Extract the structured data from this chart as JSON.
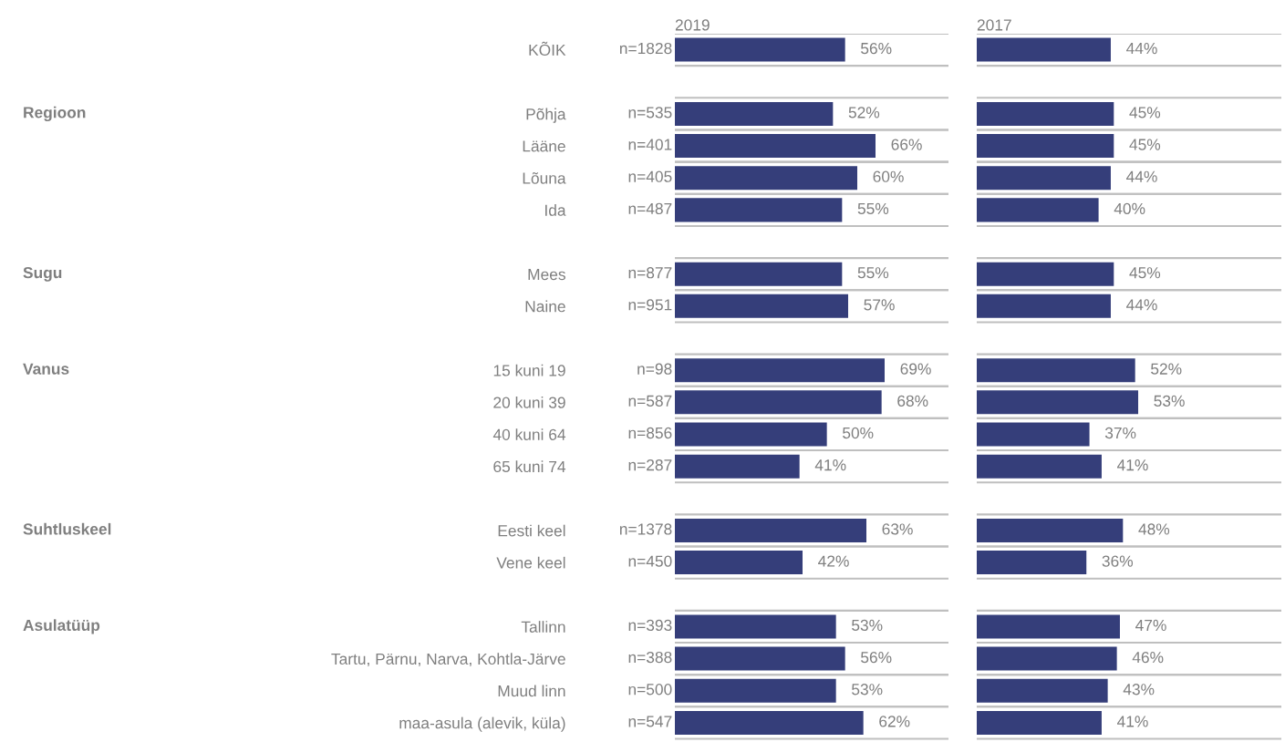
{
  "chart_data": [
    {
      "type": "other",
      "annotations": [
        {
          "text": "Regioon",
          "y": "Põhja"
        },
        {
          "text": "Sugu",
          "y": "Mees"
        },
        {
          "text": "Vanus",
          "y": "15 kuni 19"
        },
        {
          "text": "Suhtluskeel",
          "y": "Eesti keel"
        },
        {
          "text": "Asulatüüp",
          "y": "Tallinn"
        }
      ]
    },
    {
      "type": "bar",
      "orientation": "horizontal",
      "title": "2019",
      "tick_labels": "y",
      "grid": "y",
      "xlim": [
        0,
        90
      ],
      "categories": [
        "KÕIK",
        null,
        "Põhja",
        "Lääne",
        "Lõuna",
        "Ida",
        null,
        "Mees",
        "Naine",
        null,
        "15 kuni 19",
        "20 kuni 39",
        "40 kuni 64",
        "65 kuni 74",
        null,
        "Eesti keel",
        "Vene keel",
        null,
        "Tallinn",
        "Tartu, Pärnu, Narva, Kohtla-Järve",
        "Muud linn",
        "maa-asula (alevik, küla)"
      ],
      "series": [
        {
          "color": "#353e7a",
          "values": [
            56,
            null,
            52,
            66,
            60,
            55,
            null,
            55,
            57,
            null,
            69,
            68,
            50,
            41,
            null,
            63,
            42,
            null,
            53,
            56,
            53,
            62
          ],
          "value_labels": [
            "56%",
            null,
            "52%",
            "66%",
            "60%",
            "55%",
            null,
            "55%",
            "57%",
            null,
            "69%",
            "68%",
            "50%",
            "41%",
            null,
            "63%",
            "42%",
            null,
            "53%",
            "56%",
            "53%",
            "62%"
          ]
        }
      ],
      "annotations": [
        "n=1828",
        "n=535",
        "n=401",
        "n=405",
        "n=487",
        "n=877",
        "n=951",
        "n=98",
        "n=587",
        "n=856",
        "n=287",
        "n=1378",
        "n=450",
        "n=393",
        "n=388",
        "n=500",
        "n=547"
      ]
    },
    {
      "type": "bar",
      "orientation": "horizontal",
      "title": "2017",
      "grid": "y",
      "xlim": [
        0,
        100
      ],
      "categories": [
        null,
        null,
        null,
        null,
        null,
        null,
        null,
        null,
        null,
        null,
        null,
        null,
        null,
        null,
        null,
        null,
        null,
        null,
        null,
        null,
        null,
        null
      ],
      "series": [
        {
          "color": "#353e7a",
          "values": [
            44,
            null,
            45,
            45,
            44,
            40,
            null,
            45,
            44,
            null,
            52,
            53,
            37,
            41,
            null,
            48,
            36,
            null,
            47,
            46,
            43,
            41
          ],
          "value_labels": [
            "44%",
            null,
            "45%",
            "45%",
            "44%",
            "40%",
            null,
            "45%",
            "44%",
            null,
            "52%",
            "53%",
            "37%",
            "41%",
            null,
            "48%",
            "36%",
            null,
            "47%",
            "46%",
            "43%",
            "41%"
          ]
        }
      ]
    }
  ]
}
